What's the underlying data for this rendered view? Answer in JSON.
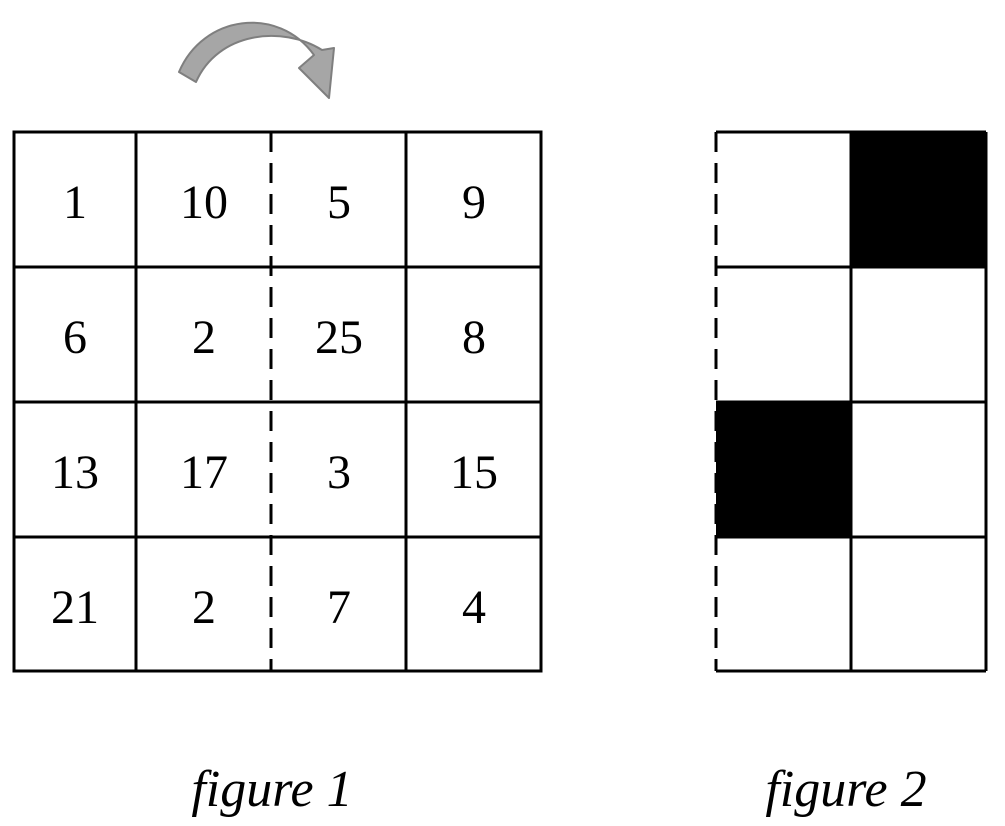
{
  "figure1": {
    "caption": "figure 1",
    "grid": [
      [
        "1",
        "10",
        "5",
        "9"
      ],
      [
        "6",
        "2",
        "25",
        "8"
      ],
      [
        "13",
        "17",
        "3",
        "15"
      ],
      [
        "21",
        "2",
        "7",
        "4"
      ]
    ],
    "fold_arrow_icon": "curved-arrow-right-icon",
    "arrow_color": "#A6A6A6"
  },
  "figure2": {
    "caption": "figure 2",
    "filled_cells": [
      [
        0,
        1
      ],
      [
        2,
        0
      ]
    ],
    "fill_color": "#000000"
  }
}
